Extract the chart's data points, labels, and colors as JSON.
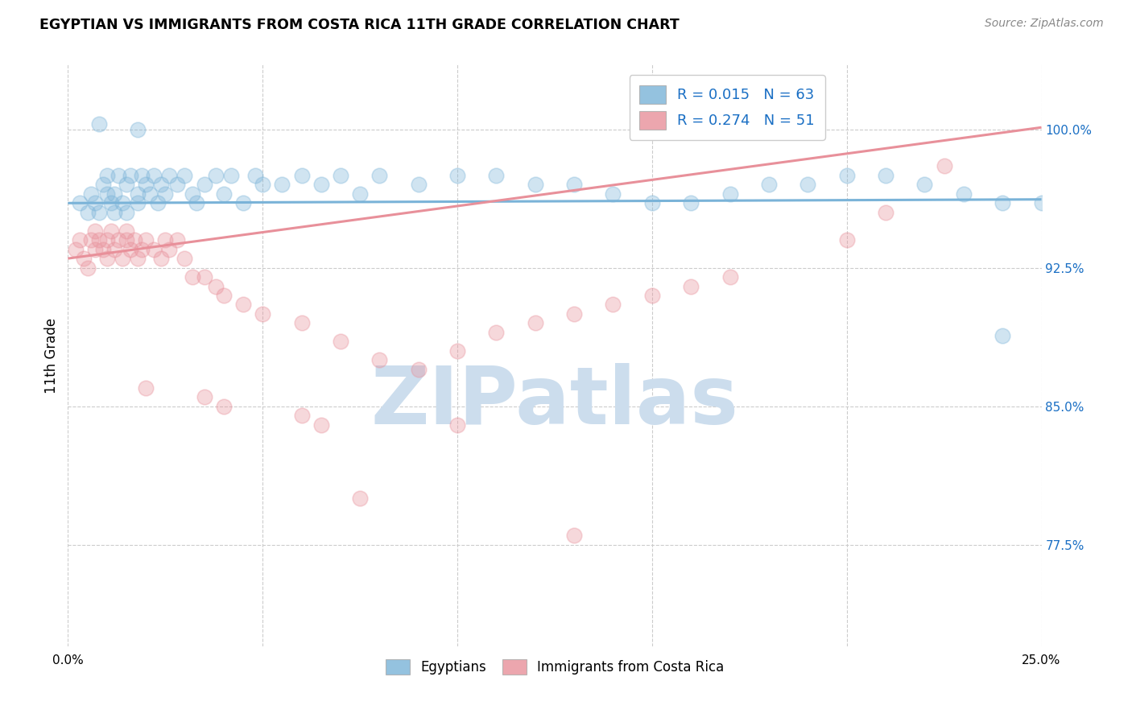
{
  "title": "EGYPTIAN VS IMMIGRANTS FROM COSTA RICA 11TH GRADE CORRELATION CHART",
  "source_text": "Source: ZipAtlas.com",
  "ylabel": "11th Grade",
  "xlim": [
    0.0,
    0.25
  ],
  "ylim": [
    0.72,
    1.035
  ],
  "yticks": [
    0.775,
    0.85,
    0.925,
    1.0
  ],
  "ytick_labels": [
    "77.5%",
    "85.0%",
    "92.5%",
    "100.0%"
  ],
  "xticks": [
    0.0,
    0.05,
    0.1,
    0.15,
    0.2,
    0.25
  ],
  "xtick_labels": [
    "0.0%",
    "",
    "",
    "",
    "",
    "25.0%"
  ],
  "legend_line1": "R = 0.015   N = 63",
  "legend_line2": "R = 0.274   N = 51",
  "legend_labels_bottom": [
    "Egyptians",
    "Immigrants from Costa Rica"
  ],
  "blue_color": "#7ab3d8",
  "pink_color": "#e8909a",
  "trend_blue_y0": 0.96,
  "trend_blue_y1": 0.962,
  "trend_pink_y0": 0.93,
  "trend_pink_y1": 1.001,
  "watermark": "ZIPatlas",
  "watermark_color": "#ccdded",
  "background_color": "#ffffff",
  "grid_color": "#cccccc",
  "legend_text_color": "#1a6fc4",
  "blue_scatter_x": [
    0.003,
    0.005,
    0.006,
    0.007,
    0.008,
    0.009,
    0.01,
    0.01,
    0.011,
    0.012,
    0.012,
    0.013,
    0.014,
    0.015,
    0.015,
    0.016,
    0.018,
    0.018,
    0.019,
    0.02,
    0.021,
    0.022,
    0.023,
    0.024,
    0.025,
    0.026,
    0.028,
    0.03,
    0.032,
    0.033,
    0.035,
    0.038,
    0.04,
    0.042,
    0.045,
    0.048,
    0.05,
    0.055,
    0.06,
    0.065,
    0.07,
    0.075,
    0.08,
    0.09,
    0.1,
    0.11,
    0.12,
    0.13,
    0.14,
    0.15,
    0.16,
    0.17,
    0.18,
    0.19,
    0.2,
    0.21,
    0.22,
    0.23,
    0.24,
    0.25,
    0.008,
    0.018,
    0.24
  ],
  "blue_scatter_y": [
    0.96,
    0.955,
    0.965,
    0.96,
    0.955,
    0.97,
    0.965,
    0.975,
    0.96,
    0.955,
    0.965,
    0.975,
    0.96,
    0.955,
    0.97,
    0.975,
    0.965,
    0.96,
    0.975,
    0.97,
    0.965,
    0.975,
    0.96,
    0.97,
    0.965,
    0.975,
    0.97,
    0.975,
    0.965,
    0.96,
    0.97,
    0.975,
    0.965,
    0.975,
    0.96,
    0.975,
    0.97,
    0.97,
    0.975,
    0.97,
    0.975,
    0.965,
    0.975,
    0.97,
    0.975,
    0.975,
    0.97,
    0.97,
    0.965,
    0.96,
    0.96,
    0.965,
    0.97,
    0.97,
    0.975,
    0.975,
    0.97,
    0.965,
    0.96,
    0.96,
    1.003,
    1.0,
    0.888
  ],
  "pink_scatter_x": [
    0.002,
    0.003,
    0.004,
    0.005,
    0.006,
    0.007,
    0.007,
    0.008,
    0.009,
    0.01,
    0.01,
    0.011,
    0.012,
    0.013,
    0.014,
    0.015,
    0.015,
    0.016,
    0.017,
    0.018,
    0.019,
    0.02,
    0.022,
    0.024,
    0.025,
    0.026,
    0.028,
    0.03,
    0.032,
    0.035,
    0.038,
    0.04,
    0.045,
    0.05,
    0.06,
    0.07,
    0.08,
    0.09,
    0.1,
    0.11,
    0.12,
    0.13,
    0.14,
    0.15,
    0.16,
    0.17,
    0.2,
    0.21,
    0.225,
    0.065,
    0.075
  ],
  "pink_scatter_y": [
    0.935,
    0.94,
    0.93,
    0.925,
    0.94,
    0.935,
    0.945,
    0.94,
    0.935,
    0.93,
    0.94,
    0.945,
    0.935,
    0.94,
    0.93,
    0.94,
    0.945,
    0.935,
    0.94,
    0.93,
    0.935,
    0.94,
    0.935,
    0.93,
    0.94,
    0.935,
    0.94,
    0.93,
    0.92,
    0.92,
    0.915,
    0.91,
    0.905,
    0.9,
    0.895,
    0.885,
    0.875,
    0.87,
    0.88,
    0.89,
    0.895,
    0.9,
    0.905,
    0.91,
    0.915,
    0.92,
    0.94,
    0.955,
    0.98,
    0.84,
    0.8
  ],
  "extra_pink_low_x": [
    0.02,
    0.035,
    0.04,
    0.06,
    0.1,
    0.13
  ],
  "extra_pink_low_y": [
    0.86,
    0.855,
    0.85,
    0.845,
    0.84,
    0.78
  ]
}
